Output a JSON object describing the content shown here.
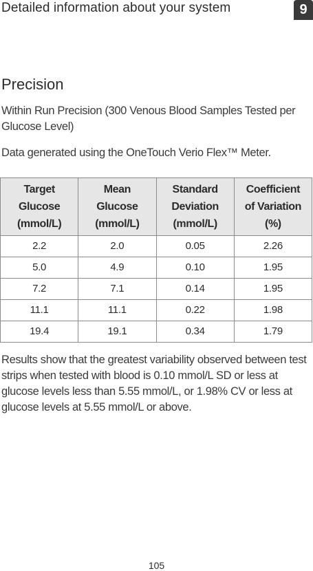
{
  "header": {
    "title": "Detailed information about your system",
    "chapter": "9"
  },
  "section": {
    "title": "Precision"
  },
  "paragraphs": {
    "intro": "Within Run Precision (300 Venous Blood Samples Tested per Glucose Level)",
    "meter": "Data generated using the OneTouch Verio Flex™ Meter.",
    "results": "Results show that the greatest variability observed between test strips when tested with blood is 0.10 mmol/L SD or less at glucose levels less than 5.55 mmol/L, or 1.98% CV or less at glucose levels at 5.55 mmol/L or above."
  },
  "table": {
    "headers": [
      [
        "Target",
        "Glucose",
        "(mmol/L)"
      ],
      [
        "Mean",
        "Glucose",
        "(mmol/L)"
      ],
      [
        "Standard",
        "Deviation",
        "(mmol/L)"
      ],
      [
        "Coefficient",
        "of Variation",
        "(%)"
      ]
    ],
    "rows": [
      [
        "2.2",
        "2.0",
        "0.05",
        "2.26"
      ],
      [
        "5.0",
        "4.9",
        "0.10",
        "1.95"
      ],
      [
        "7.2",
        "7.1",
        "0.14",
        "1.95"
      ],
      [
        "11.1",
        "11.1",
        "0.22",
        "1.98"
      ],
      [
        "19.4",
        "19.1",
        "0.34",
        "1.79"
      ]
    ]
  },
  "page_number": "105"
}
